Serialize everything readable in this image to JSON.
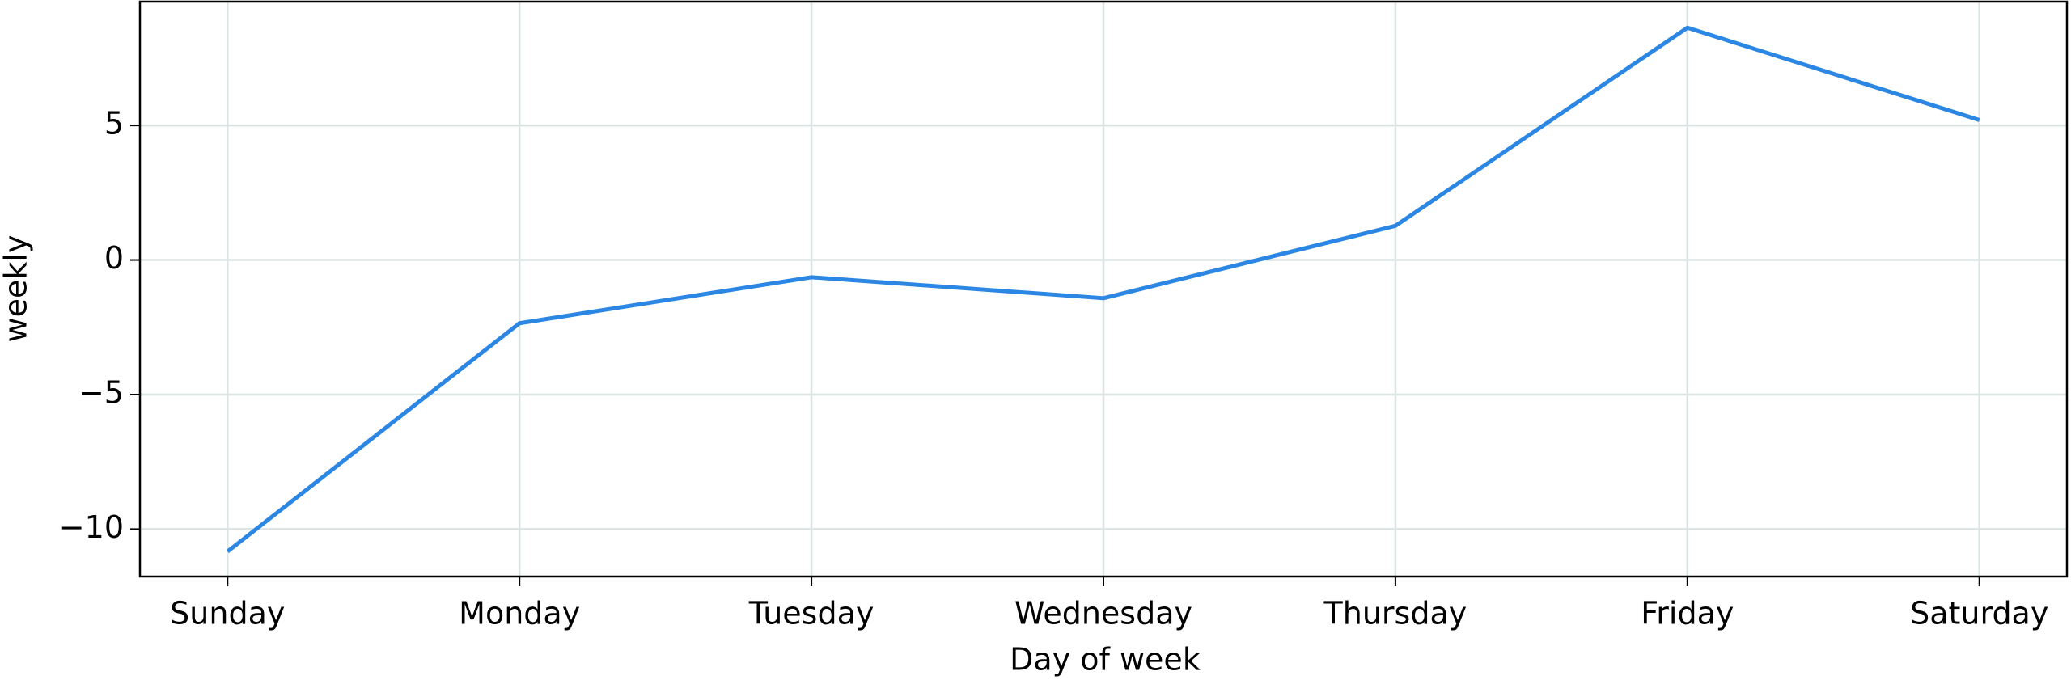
{
  "chart_data": {
    "type": "line",
    "categories": [
      "Sunday",
      "Monday",
      "Tuesday",
      "Wednesday",
      "Thursday",
      "Friday",
      "Saturday"
    ],
    "series": [
      {
        "name": "weekly",
        "color": "#2b87e3",
        "values": [
          -10.83,
          -2.35,
          -0.64,
          -1.42,
          1.27,
          8.63,
          5.2
        ]
      }
    ],
    "xlabel": "Day of week",
    "ylabel": "weekly",
    "ylim": [
      -11.76,
      9.6
    ],
    "yticks": [
      {
        "value": -10,
        "label": "−10"
      },
      {
        "value": -5,
        "label": "−5"
      },
      0,
      5
    ],
    "grid": true
  }
}
